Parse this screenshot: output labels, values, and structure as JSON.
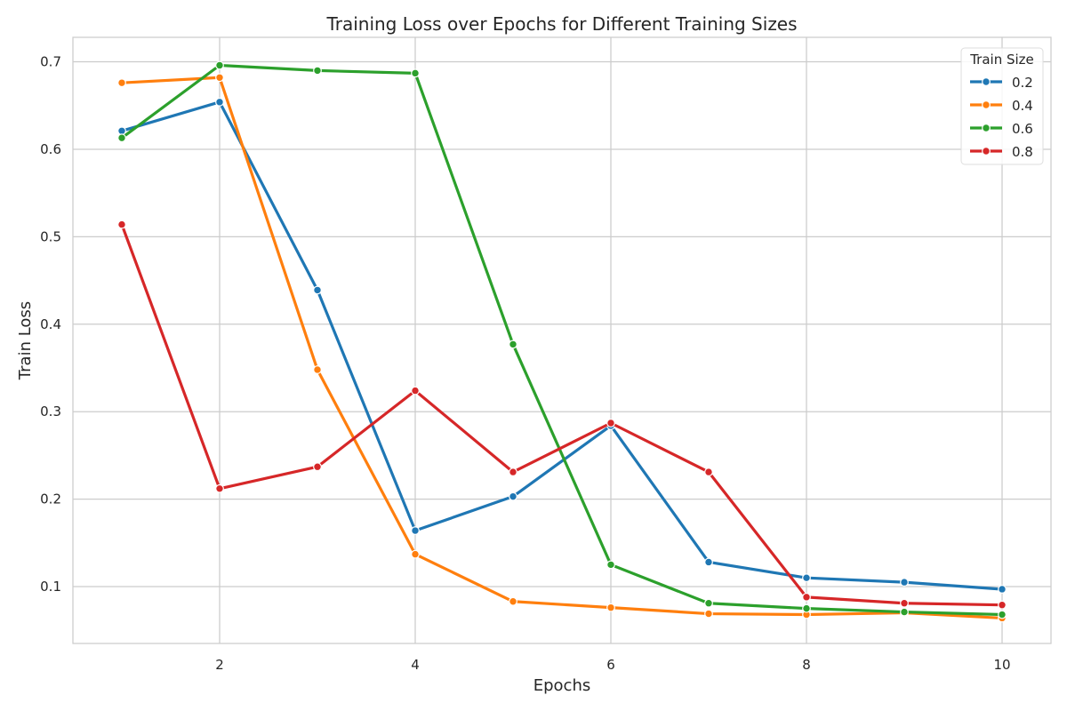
{
  "chart_data": {
    "type": "line",
    "title": "Training Loss over Epochs for Different Training Sizes",
    "xlabel": "Epochs",
    "ylabel": "Train Loss",
    "x": [
      1,
      2,
      3,
      4,
      5,
      6,
      7,
      8,
      9,
      10
    ],
    "xlim": [
      0.5,
      10.5
    ],
    "ylim": [
      0.035,
      0.728
    ],
    "xticks": [
      2,
      4,
      6,
      8,
      10
    ],
    "xtick_labels": [
      "2",
      "4",
      "6",
      "8",
      "10"
    ],
    "yticks": [
      0.1,
      0.2,
      0.3,
      0.4,
      0.5,
      0.6,
      0.7
    ],
    "ytick_labels": [
      "0.1",
      "0.2",
      "0.3",
      "0.4",
      "0.5",
      "0.6",
      "0.7"
    ],
    "grid": true,
    "legend": {
      "title": "Train Size",
      "placement": "top-right"
    },
    "series": [
      {
        "name": "0.2",
        "color": "#1f77b4",
        "values": [
          0.621,
          0.654,
          0.439,
          0.164,
          0.203,
          0.284,
          0.128,
          0.11,
          0.105,
          0.097
        ]
      },
      {
        "name": "0.4",
        "color": "#ff7f0e",
        "values": [
          0.676,
          0.682,
          0.348,
          0.137,
          0.083,
          0.076,
          0.069,
          0.068,
          0.07,
          0.064
        ]
      },
      {
        "name": "0.6",
        "color": "#2ca02c",
        "values": [
          0.613,
          0.696,
          0.69,
          0.687,
          0.377,
          0.125,
          0.081,
          0.075,
          0.071,
          0.068
        ]
      },
      {
        "name": "0.8",
        "color": "#d62728",
        "values": [
          0.514,
          0.212,
          0.237,
          0.324,
          0.231,
          0.287,
          0.231,
          0.088,
          0.081,
          0.079
        ]
      }
    ]
  }
}
